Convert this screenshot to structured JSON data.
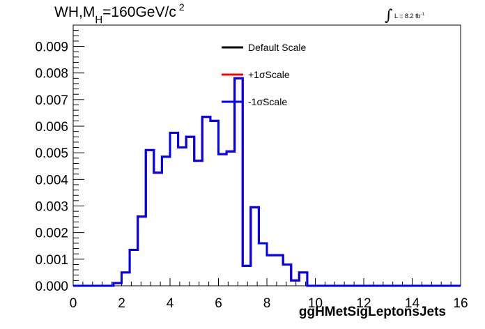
{
  "title": {
    "text": "WH,M",
    "sub": "H",
    "rest": "=160GeV/c",
    "sup": "2"
  },
  "lumi": {
    "text": "L = 8.2 fb",
    "sup": "-1"
  },
  "chart_data": {
    "type": "line",
    "xlabel": "ggHMetSigLeptonsJets",
    "ylabel": "",
    "xlim": [
      0,
      16
    ],
    "ylim": [
      0,
      0.0098
    ],
    "xticks": [
      "0",
      "2",
      "4",
      "6",
      "8",
      "10",
      "12",
      "14",
      "16"
    ],
    "yticks": [
      "0.000",
      "0.001",
      "0.002",
      "0.003",
      "0.004",
      "0.005",
      "0.006",
      "0.007",
      "0.008",
      "0.009"
    ],
    "bin_edges": [
      0,
      0.333,
      0.667,
      1,
      1.333,
      1.667,
      2,
      2.333,
      2.667,
      3,
      3.333,
      3.667,
      4,
      4.333,
      4.667,
      5,
      5.333,
      5.667,
      6,
      6.333,
      6.667,
      7,
      7.333,
      7.667,
      8,
      8.333,
      8.667,
      9,
      9.333,
      9.667,
      10,
      10.333,
      10.667,
      11,
      11.333,
      11.667,
      12,
      12.333,
      12.667,
      13,
      13.333,
      13.667,
      14,
      14.333,
      14.667,
      15,
      15.333,
      15.667,
      16
    ],
    "legend_position": "top-center",
    "series": [
      {
        "name": "Default Scale",
        "color": "#000000",
        "values": [
          0,
          0,
          0,
          0,
          0,
          0.0001,
          0.0005,
          0.00135,
          0.0026,
          0.0051,
          0.00425,
          0.00485,
          0.00575,
          0.0052,
          0.0056,
          0.0047,
          0.00635,
          0.0062,
          0.00495,
          0.00505,
          0.0078,
          0.00075,
          0.00295,
          0.0016,
          0.00115,
          0.00115,
          0.0008,
          0.0002,
          0.0005,
          0,
          0,
          0,
          0,
          0,
          0,
          0,
          0,
          0,
          0,
          0,
          0,
          0,
          0,
          0,
          0,
          0,
          0,
          0
        ]
      },
      {
        "name": "+1σScale",
        "color": "#ff0000",
        "values": [
          0,
          0,
          0,
          0,
          0,
          0.0001,
          0.0005,
          0.00135,
          0.0026,
          0.0051,
          0.00425,
          0.00485,
          0.00575,
          0.0052,
          0.0056,
          0.0047,
          0.00635,
          0.0062,
          0.00495,
          0.00505,
          0.0078,
          0.00075,
          0.00295,
          0.0016,
          0.00115,
          0.00115,
          0.0008,
          0.0002,
          0.0005,
          0,
          0,
          0,
          0,
          0,
          0,
          0,
          0,
          0,
          0,
          0,
          0,
          0,
          0,
          0,
          0,
          0,
          0,
          0
        ]
      },
      {
        "name": "-1σScale",
        "color": "#0000ff",
        "values": [
          0,
          0,
          0,
          0,
          0,
          0.0001,
          0.0005,
          0.00135,
          0.0026,
          0.0051,
          0.00425,
          0.00485,
          0.00575,
          0.0052,
          0.0056,
          0.0047,
          0.00635,
          0.0062,
          0.00495,
          0.00505,
          0.0078,
          0.00075,
          0.00295,
          0.0016,
          0.00115,
          0.00115,
          0.0008,
          0.0002,
          0.0005,
          0,
          0,
          0,
          0,
          0,
          0,
          0,
          0,
          0,
          0,
          0,
          0,
          0,
          0,
          0,
          0,
          0,
          0,
          0
        ]
      }
    ]
  }
}
